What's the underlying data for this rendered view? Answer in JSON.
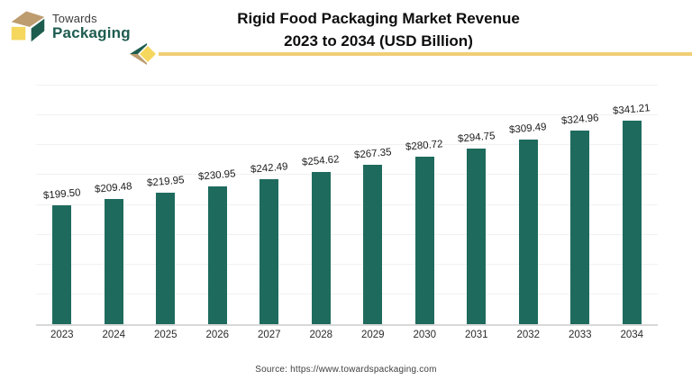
{
  "header": {
    "logo_word1": "Towards",
    "logo_word2": "Packaging",
    "title_line1": "Rigid Food Packaging Market Revenue",
    "title_line2": "2023 to 2034 (USD Billion)"
  },
  "chart_data": {
    "type": "bar",
    "title": "Rigid Food Packaging Market Revenue 2023 to 2034 (USD Billion)",
    "categories": [
      "2023",
      "2024",
      "2025",
      "2026",
      "2027",
      "2028",
      "2029",
      "2030",
      "2031",
      "2032",
      "2033",
      "2034"
    ],
    "values": [
      199.5,
      209.48,
      219.95,
      230.95,
      242.49,
      254.62,
      267.35,
      280.72,
      294.75,
      309.49,
      324.96,
      341.21
    ],
    "value_labels": [
      "$199.50",
      "$209.48",
      "$219.95",
      "$230.95",
      "$242.49",
      "$254.62",
      "$267.35",
      "$280.72",
      "$294.75",
      "$309.49",
      "$324.96",
      "$341.21"
    ],
    "xlabel": "",
    "ylabel": "",
    "unit": "USD Billion",
    "ylim": [
      0,
      400
    ],
    "gridline_step": 50,
    "grid": "horizontal-faint",
    "legend": "none",
    "bar_color": "#1e6b5e"
  },
  "footer": {
    "source": "Source: https://www.towardspackaging.com"
  },
  "colors": {
    "bar": "#1e6b5e",
    "accent_yellow": "#f0ce74",
    "logo_green": "#1d5c50",
    "logo_tan": "#bd9c6f",
    "logo_yellow": "#f5d75e",
    "axis_line": "#d8d8d8",
    "gridline": "#f1f1f1",
    "title_text": "#0d0d0d"
  }
}
